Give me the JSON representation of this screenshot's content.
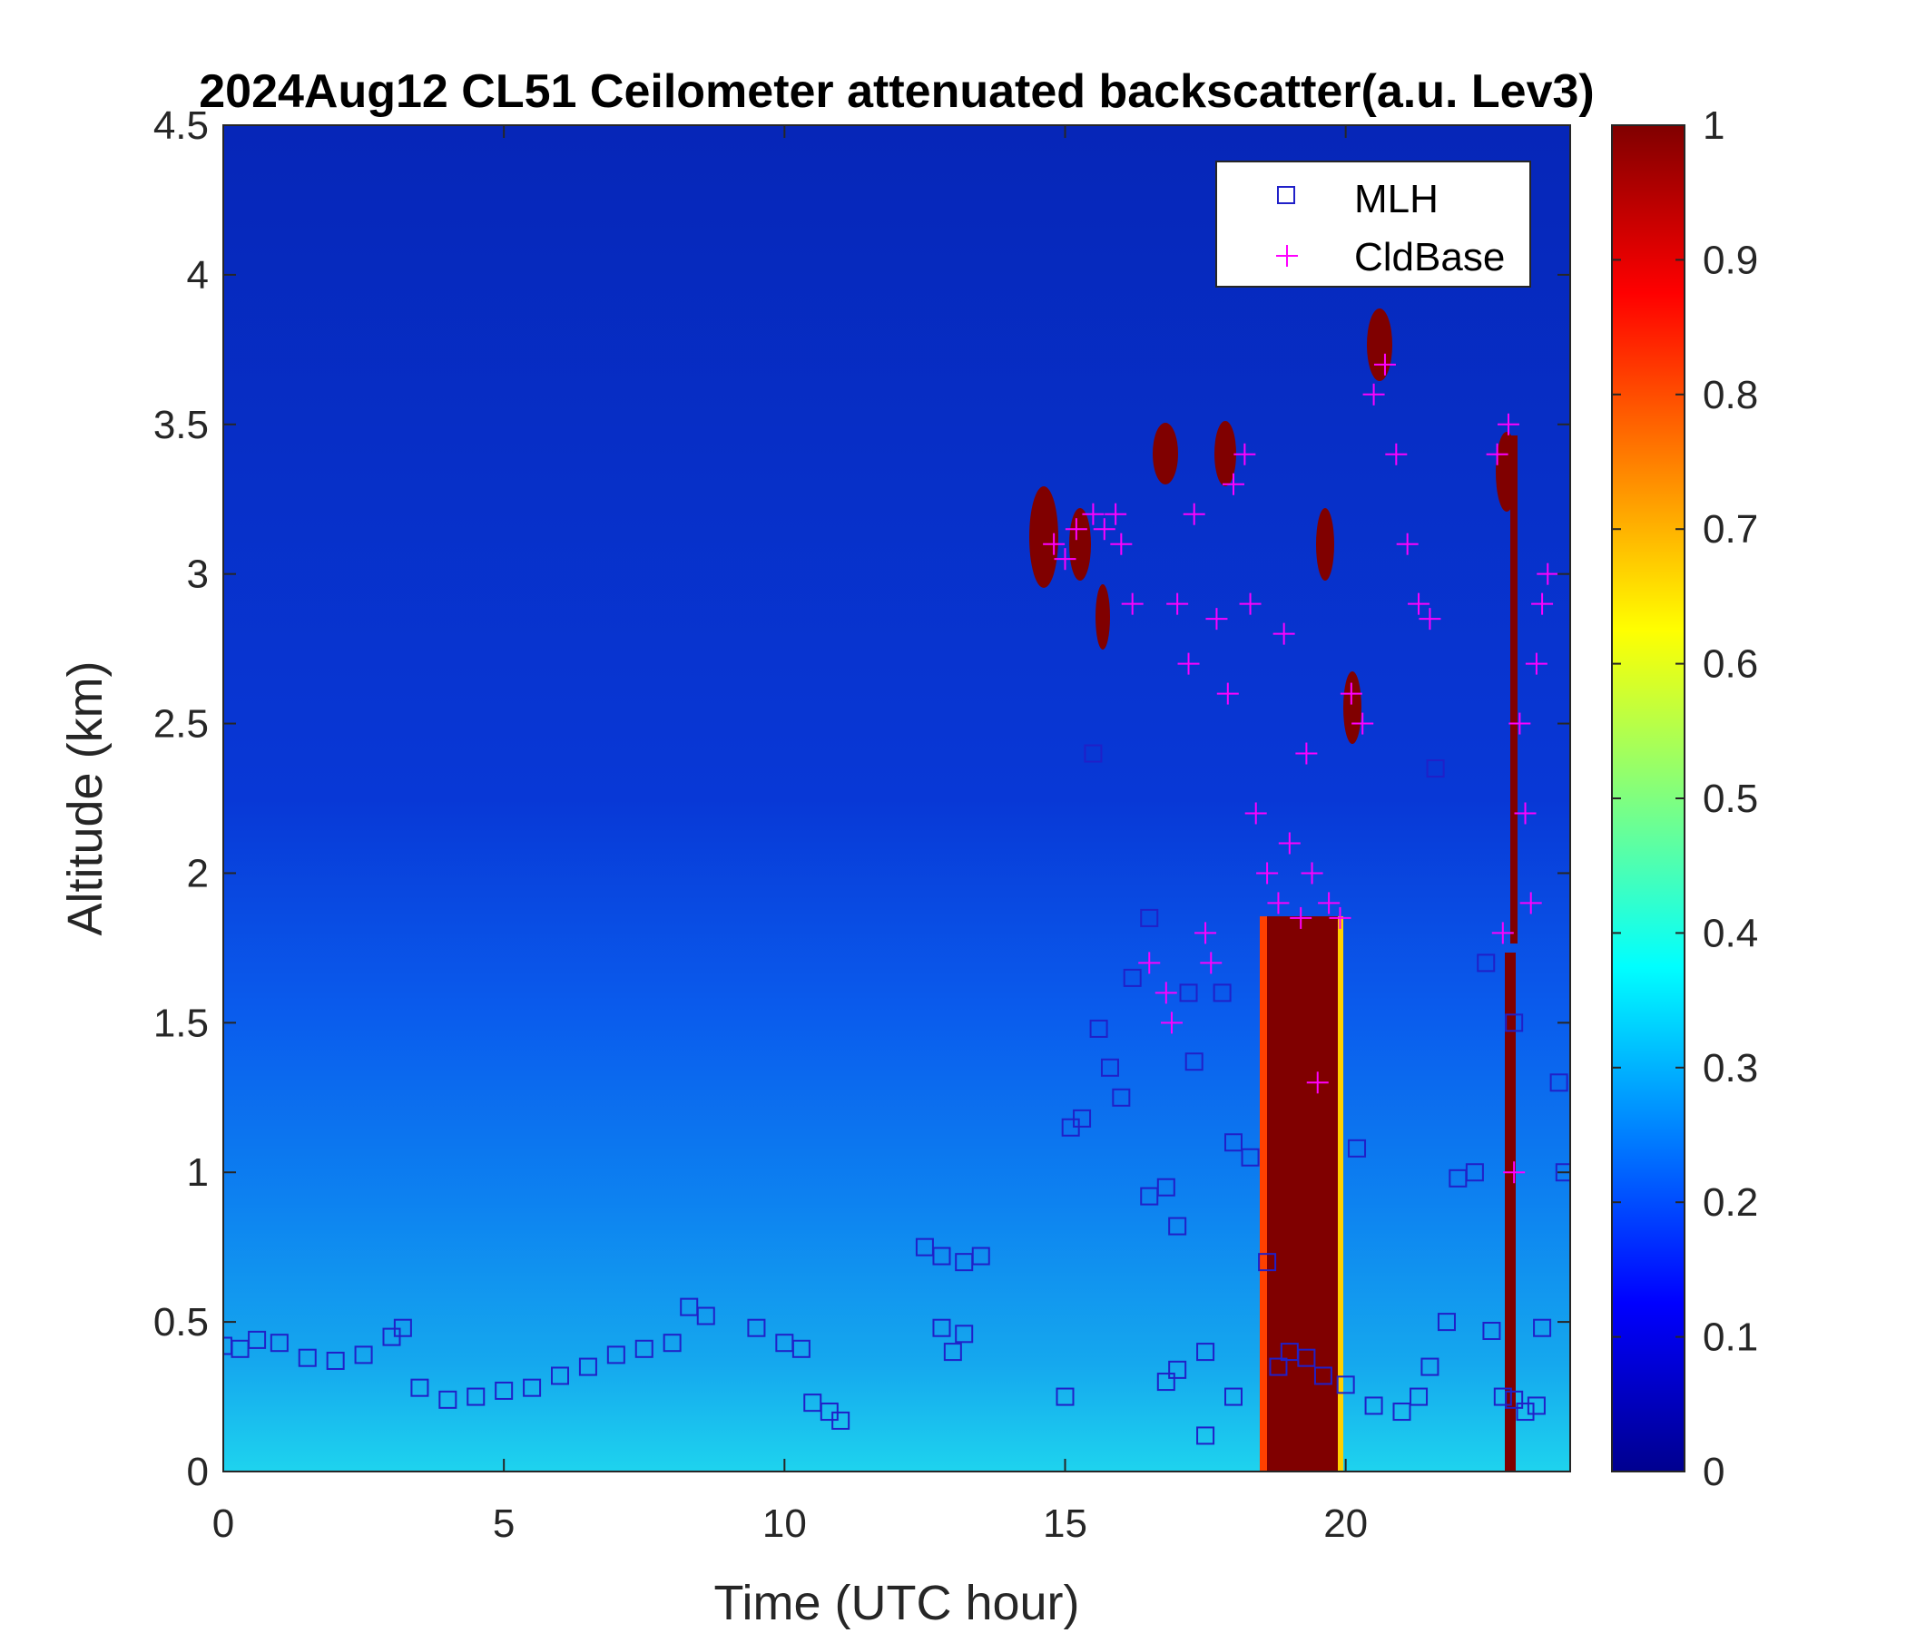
{
  "chart_data": {
    "type": "heatmap",
    "title": "2024Aug12 CL51 Ceilometer attenuated backscatter(a.u. Lev3)",
    "xlabel": "Time (UTC hour)",
    "ylabel": "Altitude (km)",
    "xlim": [
      0,
      24
    ],
    "ylim": [
      0,
      4.5
    ],
    "xticks": [
      "0",
      "5",
      "10",
      "15",
      "20"
    ],
    "yticks": [
      "0",
      "0.5",
      "1",
      "1.5",
      "2",
      "2.5",
      "3",
      "3.5",
      "4",
      "4.5"
    ],
    "colorbar": {
      "colormap": "jet",
      "range": [
        0,
        1
      ],
      "ticks": [
        "0",
        "0.1",
        "0.2",
        "0.3",
        "0.4",
        "0.5",
        "0.6",
        "0.7",
        "0.8",
        "0.9",
        "1"
      ]
    },
    "legend": {
      "placement": "top-right",
      "entries": [
        {
          "label": "MLH",
          "marker": "square",
          "color": "#2020c8"
        },
        {
          "label": "CldBase",
          "marker": "plus",
          "color": "#ff00ff"
        }
      ]
    },
    "mlh": [
      [
        0,
        0.42
      ],
      [
        0.3,
        0.41
      ],
      [
        0.6,
        0.44
      ],
      [
        1.0,
        0.43
      ],
      [
        1.5,
        0.38
      ],
      [
        2.0,
        0.37
      ],
      [
        2.5,
        0.39
      ],
      [
        3.0,
        0.45
      ],
      [
        3.2,
        0.48
      ],
      [
        3.5,
        0.28
      ],
      [
        4.0,
        0.24
      ],
      [
        4.5,
        0.25
      ],
      [
        5.0,
        0.27
      ],
      [
        5.5,
        0.28
      ],
      [
        6.0,
        0.32
      ],
      [
        6.5,
        0.35
      ],
      [
        7.0,
        0.39
      ],
      [
        7.5,
        0.41
      ],
      [
        8.0,
        0.43
      ],
      [
        8.3,
        0.55
      ],
      [
        8.6,
        0.52
      ],
      [
        9.5,
        0.48
      ],
      [
        10.0,
        0.43
      ],
      [
        10.3,
        0.41
      ],
      [
        10.5,
        0.23
      ],
      [
        10.8,
        0.2
      ],
      [
        11.0,
        0.17
      ],
      [
        12.5,
        0.75
      ],
      [
        12.8,
        0.72
      ],
      [
        13.2,
        0.7
      ],
      [
        13.5,
        0.72
      ],
      [
        12.8,
        0.48
      ],
      [
        13.0,
        0.4
      ],
      [
        13.2,
        0.46
      ],
      [
        15.1,
        1.15
      ],
      [
        15.3,
        1.18
      ],
      [
        15.6,
        1.48
      ],
      [
        15.8,
        1.35
      ],
      [
        16.0,
        1.25
      ],
      [
        16.2,
        1.65
      ],
      [
        16.5,
        0.92
      ],
      [
        16.8,
        0.95
      ],
      [
        17.0,
        0.82
      ],
      [
        17.3,
        1.37
      ],
      [
        17.5,
        0.12
      ],
      [
        17.8,
        1.6
      ],
      [
        18.0,
        1.1
      ],
      [
        18.3,
        1.05
      ],
      [
        18.6,
        0.7
      ],
      [
        18.8,
        0.35
      ],
      [
        19.3,
        0.38
      ],
      [
        19.6,
        0.32
      ],
      [
        20.0,
        0.29
      ],
      [
        20.5,
        0.22
      ],
      [
        21.0,
        0.2
      ],
      [
        21.3,
        0.25
      ],
      [
        21.5,
        0.35
      ],
      [
        21.8,
        0.5
      ],
      [
        22.0,
        0.98
      ],
      [
        22.3,
        1.0
      ],
      [
        22.5,
        1.7
      ],
      [
        22.8,
        0.25
      ],
      [
        23.0,
        1.5
      ],
      [
        23.2,
        0.2
      ],
      [
        23.5,
        0.48
      ],
      [
        23.8,
        1.3
      ],
      [
        23.9,
        1.0
      ],
      [
        15.0,
        0.25
      ],
      [
        15.5,
        2.4
      ],
      [
        16.5,
        1.85
      ],
      [
        17.2,
        1.6
      ],
      [
        20.2,
        1.08
      ],
      [
        16.8,
        0.3
      ],
      [
        17.0,
        0.34
      ],
      [
        17.5,
        0.4
      ],
      [
        18.0,
        0.25
      ],
      [
        19.0,
        0.4
      ],
      [
        21.6,
        2.35
      ],
      [
        22.6,
        0.47
      ],
      [
        23.0,
        0.24
      ],
      [
        23.4,
        0.22
      ]
    ],
    "cldbase": [
      [
        14.8,
        3.1
      ],
      [
        15.0,
        3.05
      ],
      [
        15.2,
        3.15
      ],
      [
        15.5,
        3.2
      ],
      [
        15.7,
        3.15
      ],
      [
        15.9,
        3.2
      ],
      [
        16.2,
        2.9
      ],
      [
        16.5,
        1.7
      ],
      [
        16.8,
        1.6
      ],
      [
        17.0,
        2.9
      ],
      [
        17.2,
        2.7
      ],
      [
        17.5,
        1.8
      ],
      [
        17.7,
        2.85
      ],
      [
        17.9,
        2.6
      ],
      [
        18.0,
        3.3
      ],
      [
        18.2,
        3.4
      ],
      [
        18.4,
        2.2
      ],
      [
        18.6,
        2.0
      ],
      [
        18.8,
        1.9
      ],
      [
        19.0,
        2.1
      ],
      [
        19.2,
        1.85
      ],
      [
        19.4,
        2.0
      ],
      [
        19.5,
        1.3
      ],
      [
        19.7,
        1.9
      ],
      [
        19.9,
        1.85
      ],
      [
        20.1,
        2.6
      ],
      [
        20.3,
        2.5
      ],
      [
        20.5,
        3.6
      ],
      [
        20.7,
        3.7
      ],
      [
        20.9,
        3.4
      ],
      [
        21.1,
        3.1
      ],
      [
        21.3,
        2.9
      ],
      [
        21.5,
        2.85
      ],
      [
        22.7,
        3.4
      ],
      [
        22.9,
        3.5
      ],
      [
        23.1,
        2.5
      ],
      [
        23.2,
        2.2
      ],
      [
        23.3,
        1.9
      ],
      [
        23.4,
        2.7
      ],
      [
        23.5,
        2.9
      ],
      [
        23.6,
        3.0
      ],
      [
        22.8,
        1.8
      ],
      [
        23.0,
        1.0
      ],
      [
        18.9,
        2.8
      ],
      [
        19.3,
        2.4
      ],
      [
        16.0,
        3.1
      ],
      [
        17.3,
        3.2
      ],
      [
        18.3,
        2.9
      ],
      [
        16.9,
        1.5
      ],
      [
        17.6,
        1.7
      ]
    ]
  }
}
